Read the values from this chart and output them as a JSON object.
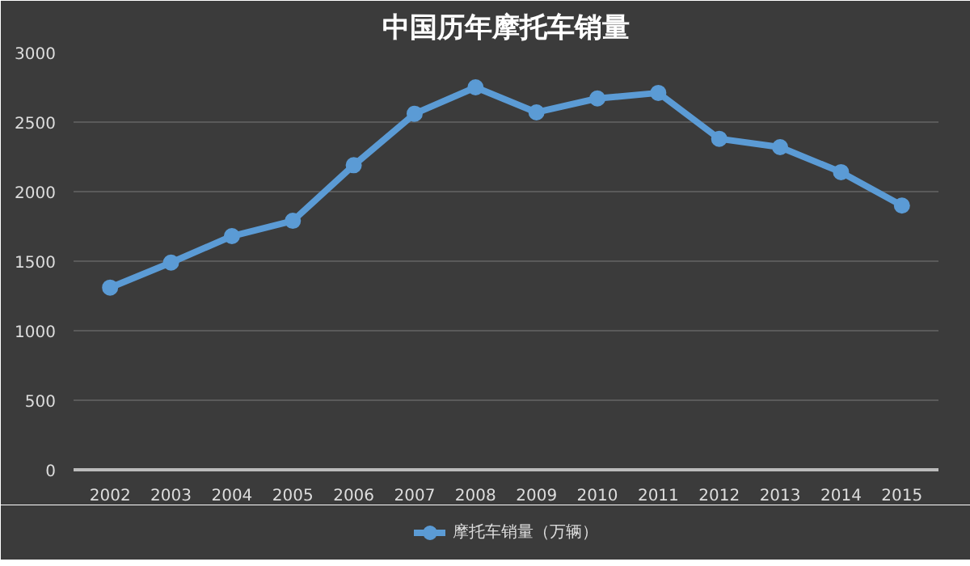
{
  "chart_data": {
    "type": "line",
    "title": "中国历年摩托车销量",
    "categories": [
      "2002",
      "2003",
      "2004",
      "2005",
      "2006",
      "2007",
      "2008",
      "2009",
      "2010",
      "2011",
      "2012",
      "2013",
      "2014",
      "2015"
    ],
    "series": [
      {
        "name": "摩托车销量（万辆）",
        "color": "#5b9bd5",
        "values": [
          1310,
          1490,
          1680,
          1790,
          2190,
          2560,
          2750,
          2570,
          2670,
          2710,
          2380,
          2320,
          2140,
          1900
        ]
      }
    ],
    "ylim": [
      0,
      3000
    ],
    "yticks": [
      0,
      500,
      1000,
      1500,
      2000,
      2500,
      3000
    ],
    "grid": "y",
    "legend": "bottom",
    "marker": "circle",
    "line_style": "solid"
  }
}
